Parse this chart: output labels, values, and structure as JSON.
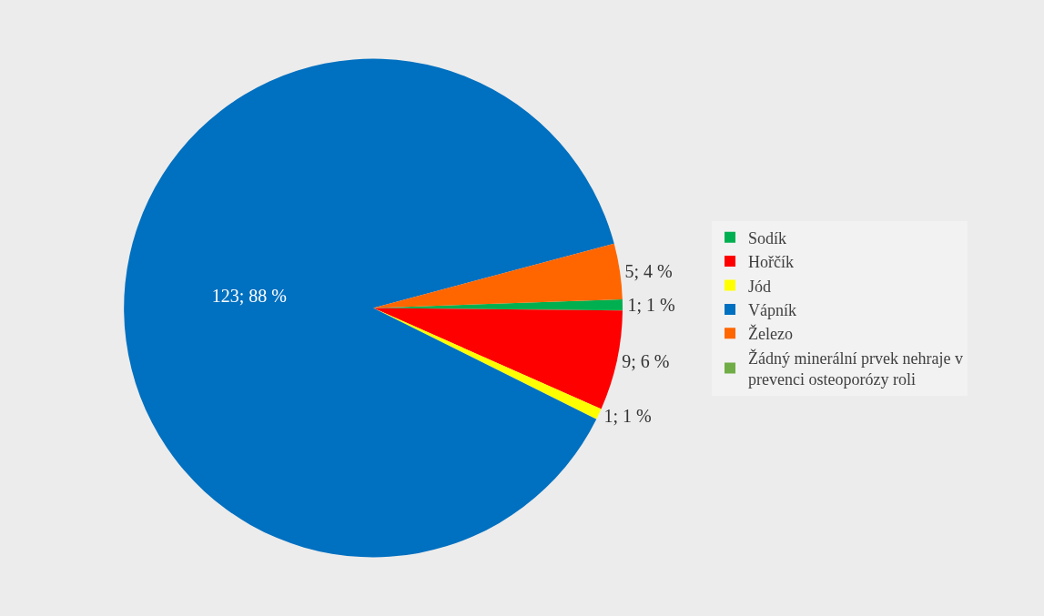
{
  "chart_data": {
    "type": "pie",
    "categories": [
      "Sodík",
      "Hořčík",
      "Jód",
      "Vápník",
      "Železo",
      "Žádný minerální prvek nehraje v prevenci osteoporózy roli"
    ],
    "values": [
      1,
      9,
      1,
      123,
      5,
      0
    ],
    "colors": [
      "#00b050",
      "#ff0000",
      "#ffff00",
      "#0070c0",
      "#ff6600",
      "#70ad47"
    ],
    "value_labels": [
      "1; 1 %",
      "9; 6 %",
      "1; 1 %",
      "123; 88 %",
      "5; 4 %",
      null
    ],
    "legend": "right"
  }
}
